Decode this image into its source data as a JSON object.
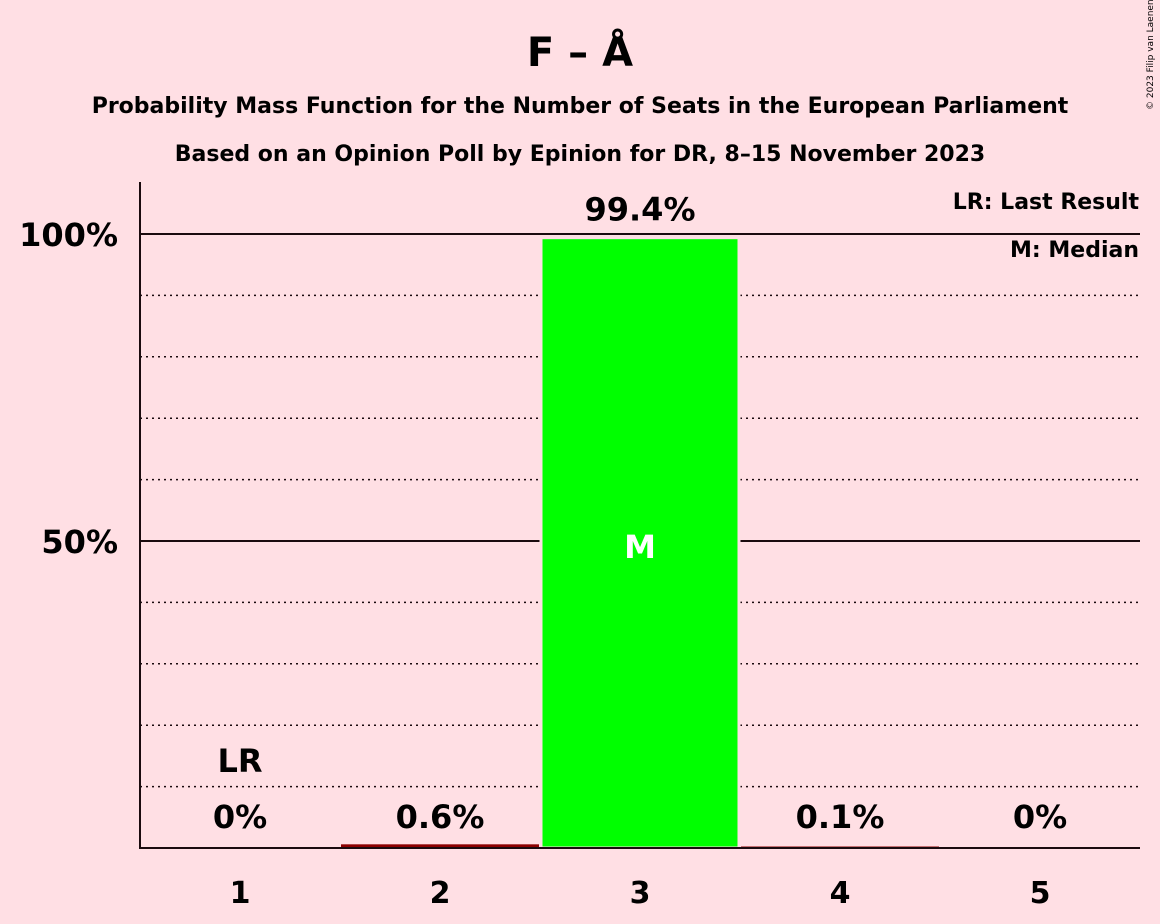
{
  "chart_data": {
    "type": "bar",
    "title": "F – Å",
    "subtitle": "Probability Mass Function for the Number of Seats in the European Parliament",
    "subtitle2": "Based on an Opinion Poll by Epinion for DR, 8–15 November 2023",
    "copyright": "© 2023 Filip van Laenen",
    "categories": [
      "1",
      "2",
      "3",
      "4",
      "5"
    ],
    "values": [
      0,
      0.6,
      99.4,
      0.1,
      0
    ],
    "value_labels": [
      "0%",
      "0.6%",
      "99.4%",
      "0.1%",
      "0%"
    ],
    "ylim": [
      0,
      108
    ],
    "yticks": [
      {
        "value": 50,
        "label": "50%"
      },
      {
        "value": 100,
        "label": "100%"
      }
    ],
    "minor_gridlines": [
      10,
      20,
      30,
      40,
      60,
      70,
      80,
      90
    ],
    "last_result": {
      "category": "1",
      "label": "LR"
    },
    "median": {
      "category": "3",
      "label": "M"
    },
    "legend": {
      "placement": "top-right",
      "items": [
        "LR: Last Result",
        "M: Median"
      ]
    },
    "colors": {
      "background": "#FFDFE4",
      "median_bar": "#00FF00",
      "other_bar": "#8B0000",
      "text": "#1A0A0E"
    }
  }
}
